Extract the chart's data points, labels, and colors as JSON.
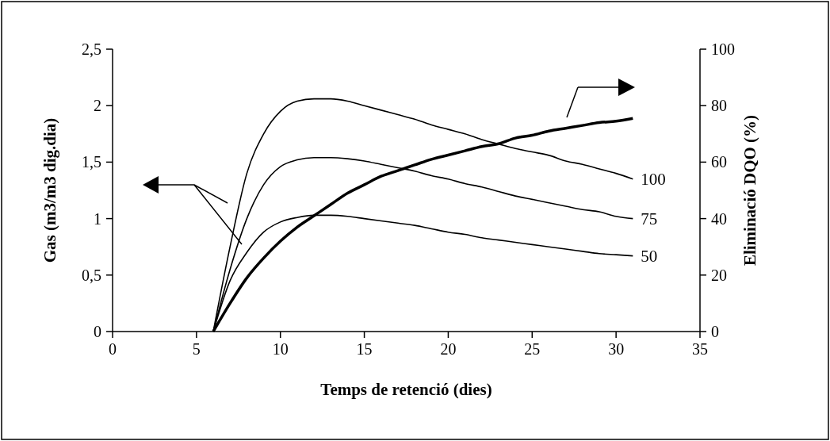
{
  "chart_data": {
    "type": "line",
    "xlabel": "Temps de retenció (dies)",
    "ylabel": "Gas (m3/m3 dig.dia)",
    "y2label": "Eliminació DQO (%)",
    "x": [
      6,
      7,
      8,
      9,
      10,
      11,
      12,
      13,
      14,
      15,
      16,
      17,
      18,
      19,
      20,
      21,
      22,
      23,
      24,
      25,
      26,
      27,
      28,
      29,
      30,
      31
    ],
    "series": [
      {
        "name": "100",
        "color": "#000000",
        "values": [
          0,
          0.75,
          1.4,
          1.75,
          1.95,
          2.04,
          2.06,
          2.06,
          2.04,
          2.0,
          1.96,
          1.92,
          1.88,
          1.83,
          1.79,
          1.75,
          1.7,
          1.66,
          1.62,
          1.59,
          1.56,
          1.51,
          1.48,
          1.44,
          1.4,
          1.35
        ]
      },
      {
        "name": "75",
        "color": "#000000",
        "values": [
          0,
          0.55,
          1.0,
          1.3,
          1.46,
          1.52,
          1.54,
          1.54,
          1.53,
          1.51,
          1.48,
          1.45,
          1.42,
          1.38,
          1.35,
          1.31,
          1.28,
          1.24,
          1.2,
          1.17,
          1.14,
          1.11,
          1.08,
          1.06,
          1.02,
          1.0
        ]
      },
      {
        "name": "50",
        "color": "#000000",
        "values": [
          0,
          0.45,
          0.7,
          0.88,
          0.97,
          1.01,
          1.03,
          1.03,
          1.02,
          1.0,
          0.98,
          0.96,
          0.94,
          0.91,
          0.88,
          0.86,
          0.83,
          0.81,
          0.79,
          0.77,
          0.75,
          0.73,
          0.71,
          0.69,
          0.68,
          0.67
        ]
      },
      {
        "color": "#000000",
        "axis": "y2",
        "values": [
          0,
          10,
          19,
          26,
          32,
          37,
          41,
          45,
          49,
          52,
          55,
          57,
          59,
          61,
          62.5,
          64,
          65.5,
          66.5,
          68.5,
          69.5,
          71,
          72,
          73,
          74,
          74.5,
          75.5
        ]
      }
    ],
    "xlim": [
      0,
      35
    ],
    "xticks": [
      0,
      5,
      10,
      15,
      20,
      25,
      30,
      35
    ],
    "ylim": [
      0,
      2.5
    ],
    "yticks": [
      {
        "value": 0,
        "label": "0"
      },
      {
        "value": 0.5,
        "label": "0,5"
      },
      {
        "value": 1,
        "label": "1"
      },
      {
        "value": 1.5,
        "label": "1,5"
      },
      {
        "value": 2,
        "label": "2"
      },
      {
        "value": 2.5,
        "label": "2,5"
      }
    ],
    "y2lim": [
      0,
      100
    ],
    "y2ticks": [
      0,
      20,
      40,
      60,
      80,
      100
    ],
    "grid": false,
    "marker": "none",
    "line_style": "solid"
  }
}
